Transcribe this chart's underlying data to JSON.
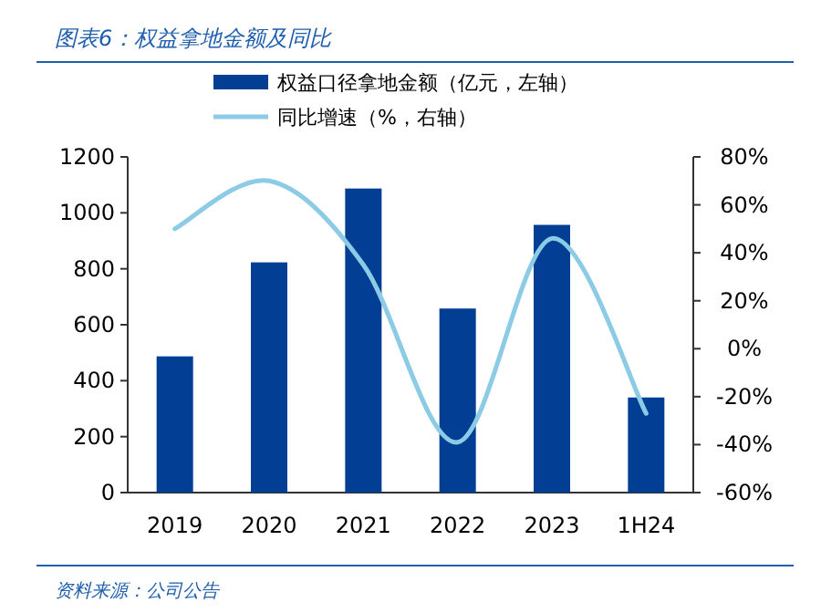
{
  "chart_data": {
    "type": "bar",
    "title": "图表6：权益拿地金额及同比",
    "annotations": [
      "资料来源：公司公告"
    ],
    "categories": [
      "2019",
      "2020",
      "2021",
      "2022",
      "2023",
      "1H24"
    ],
    "series": [
      {
        "name": "权益口径拿地金额（亿元，左轴）",
        "color": "#023e94",
        "values": [
          487,
          823,
          1087,
          658,
          957,
          340
        ]
      },
      {
        "name": "同比增速（%，右轴）",
        "type": "line",
        "axis": "y2",
        "color": "#8ccbe6",
        "values": [
          50,
          70,
          35,
          -39,
          46,
          -27
        ]
      }
    ],
    "ylim": [
      0,
      1200
    ],
    "yticks": [
      0,
      200,
      400,
      600,
      800,
      1000,
      1200
    ],
    "y2lim": [
      -60,
      80
    ],
    "y2ticks": [
      {
        "value": -60,
        "label": "-60%"
      },
      {
        "value": -40,
        "label": "-40%"
      },
      {
        "value": -20,
        "label": "-20%"
      },
      {
        "value": 0,
        "label": "0%"
      },
      {
        "value": 20,
        "label": "20%"
      },
      {
        "value": 40,
        "label": "40%"
      },
      {
        "value": 60,
        "label": "60%"
      },
      {
        "value": 80,
        "label": "80%"
      }
    ],
    "legend": "top",
    "grid": false
  }
}
